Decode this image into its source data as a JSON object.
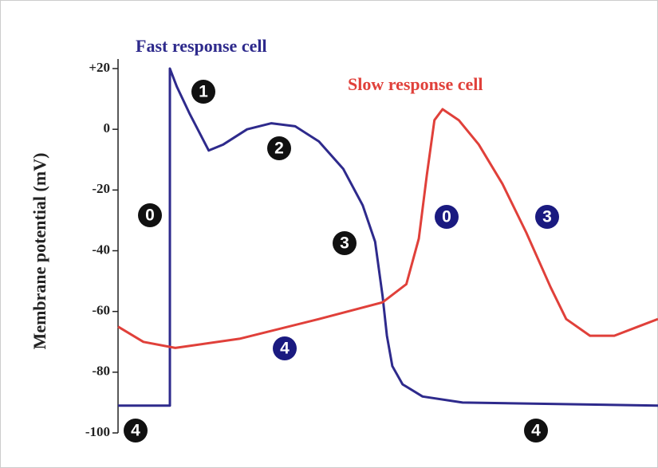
{
  "chart_data": {
    "type": "line",
    "ylabel": "Membrane potential (mV)",
    "xlim": [
      0,
      100
    ],
    "ylim": [
      -100,
      20
    ],
    "yticks": [
      {
        "value": 20,
        "label": "+20"
      },
      0,
      -20,
      -40,
      -60,
      -80,
      -100
    ],
    "series": [
      {
        "name": "Fast response cell",
        "color": "#2e2a8c",
        "x": [
          0,
          9.6,
          9.6,
          10.9,
          13.3,
          16.8,
          19.5,
          23.9,
          28.4,
          32.8,
          37.2,
          41.7,
          45.3,
          47.6,
          49.0,
          49.8,
          50.8,
          52.7,
          56.4,
          63.8,
          100
        ],
        "values": [
          -91,
          -91,
          20,
          14,
          5,
          -7,
          -5,
          0,
          2,
          1,
          -4,
          -13,
          -25,
          -37,
          -55,
          -68,
          -78,
          -84,
          -88,
          -90,
          -91
        ],
        "phase_labels": [
          "0",
          "1",
          "2",
          "3",
          "4",
          "4"
        ]
      },
      {
        "name": "Slow response cell",
        "color": "#e0403a",
        "x": [
          0,
          4.7,
          10.6,
          22.5,
          37.2,
          49.0,
          53.4,
          55.7,
          57.2,
          58.6,
          60.1,
          63.1,
          66.8,
          71.2,
          75.6,
          80.1,
          83.0,
          87.4,
          91.9,
          96.3,
          100
        ],
        "values": [
          -65,
          -70,
          -72,
          -69,
          -62.5,
          -57,
          -51,
          -36,
          -15,
          3,
          6.6,
          3,
          -5,
          -18,
          -34,
          -52,
          -62.5,
          -68,
          -68,
          -65,
          -62.5
        ],
        "phase_labels": [
          "0",
          "3",
          "4"
        ]
      }
    ]
  }
}
